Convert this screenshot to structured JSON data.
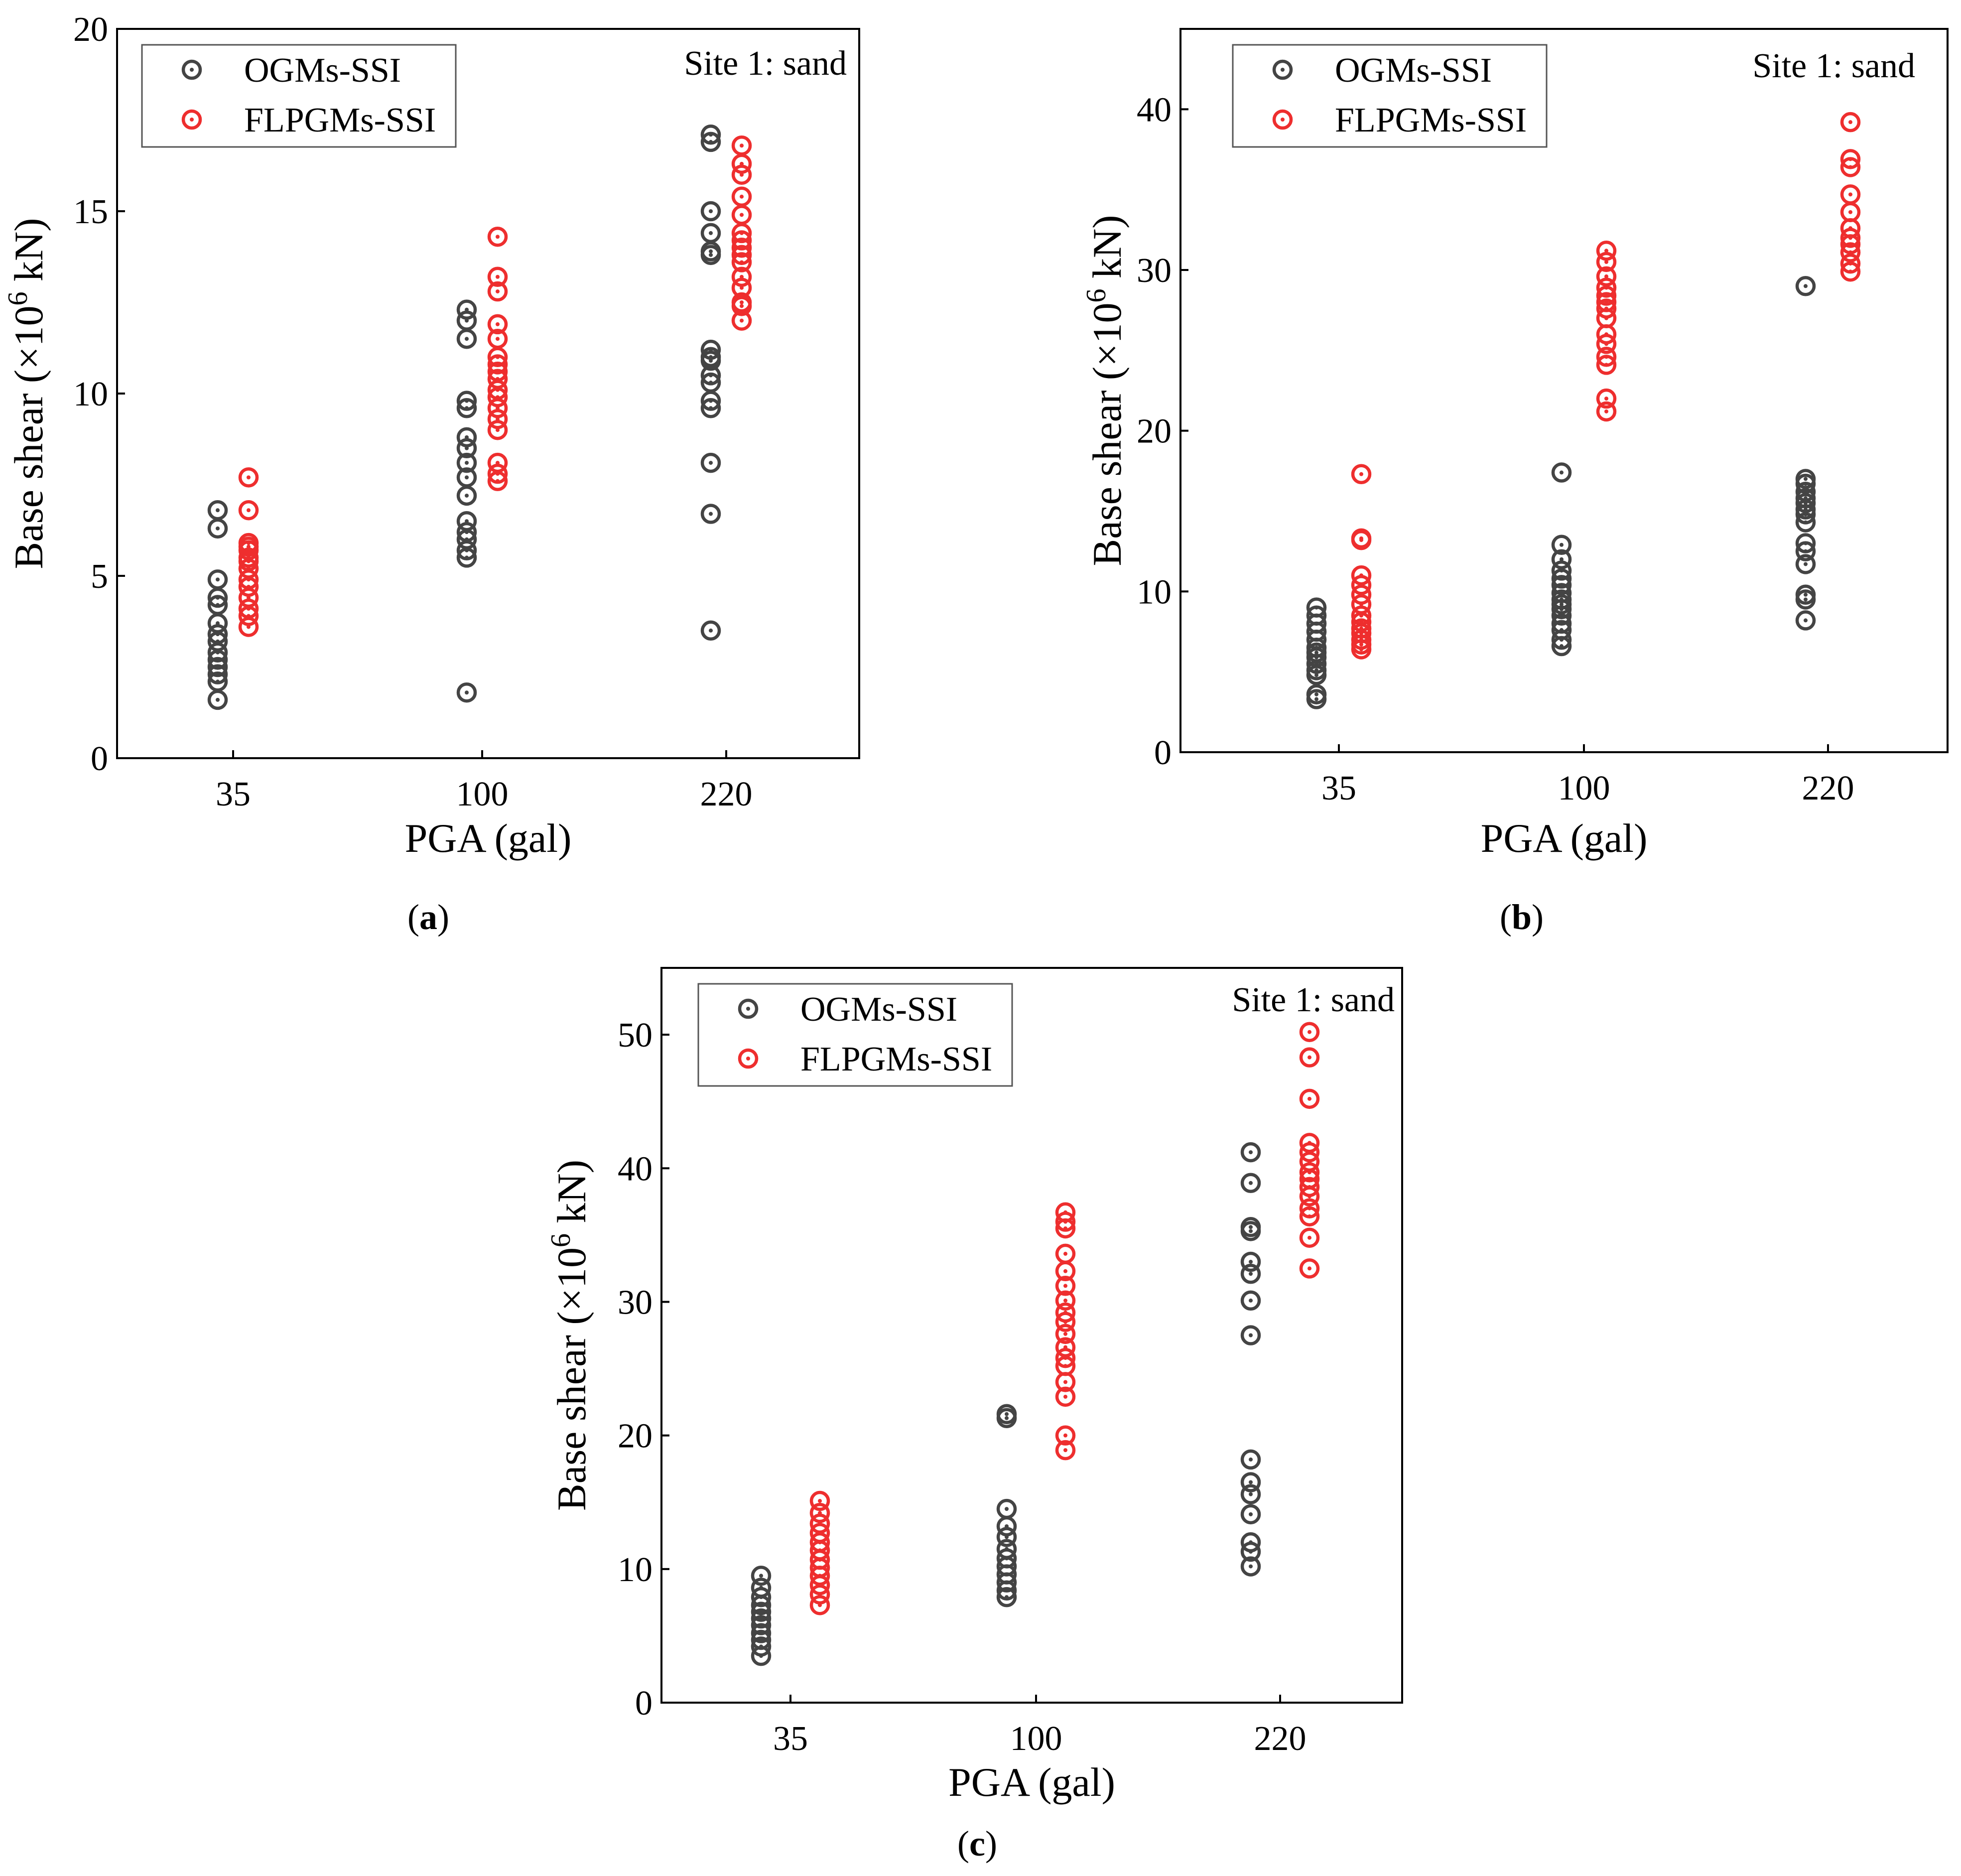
{
  "figure": {
    "panel_labels": [
      "(a)",
      "(b)",
      "(c)"
    ]
  },
  "colors": {
    "ogm": "#444444",
    "flpgm": "#ee2e2e",
    "axis": "#000000"
  },
  "chart_data": [
    {
      "type": "scatter",
      "panel": "a",
      "categories": [
        "35",
        "100",
        "220"
      ],
      "xlabel": "PGA (gal)",
      "ylabel": "Base shear (×10⁶ kN)",
      "ylim": [
        0,
        20
      ],
      "yticks": [
        0,
        5,
        10,
        15,
        20
      ],
      "annotation": "Site 1: sand",
      "legend": {
        "position": "top-left",
        "entries": [
          "OGMs-SSI",
          "FLPGMs-SSI"
        ]
      },
      "series": [
        {
          "name": "OGMs-SSI",
          "color": "#444444",
          "values": [
            [
              6.8,
              6.3,
              4.9,
              4.4,
              4.2,
              3.7,
              3.4,
              3.2,
              2.9,
              2.7,
              2.5,
              2.3,
              2.1,
              1.6
            ],
            [
              12.3,
              12.0,
              11.5,
              9.8,
              9.6,
              8.8,
              8.5,
              8.1,
              7.7,
              7.2,
              6.5,
              6.2,
              6.0,
              5.7,
              5.5,
              1.8
            ],
            [
              17.1,
              16.9,
              15.0,
              14.4,
              13.9,
              13.8,
              11.2,
              11.0,
              10.9,
              10.5,
              10.3,
              9.8,
              9.6,
              8.1,
              6.7,
              3.5
            ]
          ]
        },
        {
          "name": "FLPGMs-SSI",
          "color": "#ee2e2e",
          "values": [
            [
              7.7,
              6.8,
              5.9,
              5.8,
              5.7,
              5.5,
              5.4,
              5.2,
              4.9,
              4.7,
              4.4,
              4.1,
              3.9,
              3.6
            ],
            [
              14.3,
              13.2,
              12.8,
              11.9,
              11.5,
              11.0,
              10.8,
              10.6,
              10.4,
              10.1,
              9.9,
              9.6,
              9.3,
              9.0,
              8.1,
              7.8,
              7.6
            ],
            [
              16.8,
              16.3,
              16.0,
              15.4,
              14.9,
              14.4,
              14.2,
              14.0,
              13.8,
              13.6,
              13.2,
              12.9,
              12.5,
              12.4,
              12.0
            ]
          ]
        }
      ]
    },
    {
      "type": "scatter",
      "panel": "b",
      "categories": [
        "35",
        "100",
        "220"
      ],
      "xlabel": "PGA (gal)",
      "ylabel": "Base shear (×10⁶ kN)",
      "ylim": [
        0,
        45
      ],
      "yticks": [
        0,
        10,
        20,
        30,
        40
      ],
      "annotation": "Site 1: sand",
      "legend": {
        "position": "top-left",
        "entries": [
          "OGMs-SSI",
          "FLPGMs-SSI"
        ]
      },
      "series": [
        {
          "name": "OGMs-SSI",
          "color": "#444444",
          "values": [
            [
              9.0,
              8.5,
              8.0,
              7.5,
              7.0,
              6.5,
              6.2,
              5.9,
              5.5,
              5.1,
              4.8,
              3.6,
              3.3
            ],
            [
              17.4,
              12.9,
              12.0,
              11.3,
              10.8,
              10.4,
              9.9,
              9.5,
              9.2,
              8.9,
              8.5,
              8.0,
              7.6,
              7.0,
              6.6
            ],
            [
              29.0,
              17.0,
              16.7,
              16.2,
              15.8,
              15.5,
              15.1,
              14.8,
              14.3,
              13.0,
              12.5,
              11.7,
              9.8,
              9.5,
              8.2
            ]
          ]
        },
        {
          "name": "FLPGMs-SSI",
          "color": "#ee2e2e",
          "values": [
            [
              17.3,
              13.3,
              13.2,
              11.0,
              10.4,
              9.8,
              9.2,
              8.5,
              8.1,
              7.7,
              7.4,
              7.0,
              6.7,
              6.4
            ],
            [
              31.2,
              30.5,
              29.6,
              28.9,
              28.4,
              28.0,
              27.6,
              27.0,
              26.0,
              25.4,
              24.6,
              24.1,
              22.0,
              21.2
            ],
            [
              39.2,
              36.9,
              36.4,
              34.7,
              33.6,
              32.6,
              32.0,
              31.6,
              31.1,
              30.4,
              29.9
            ]
          ]
        }
      ]
    },
    {
      "type": "scatter",
      "panel": "c",
      "categories": [
        "35",
        "100",
        "220"
      ],
      "xlabel": "PGA (gal)",
      "ylabel": "Base shear (×10⁶ kN)",
      "ylim": [
        0,
        55
      ],
      "yticks": [
        0,
        10,
        20,
        30,
        40,
        50
      ],
      "annotation": "Site 1: sand",
      "legend": {
        "position": "top-left",
        "entries": [
          "OGMs-SSI",
          "FLPGMs-SSI"
        ]
      },
      "series": [
        {
          "name": "OGMs-SSI",
          "color": "#444444",
          "values": [
            [
              9.5,
              8.6,
              7.9,
              7.3,
              6.8,
              6.3,
              5.8,
              5.2,
              4.7,
              4.2,
              3.5
            ],
            [
              21.6,
              21.3,
              14.5,
              13.2,
              12.4,
              11.5,
              10.8,
              10.2,
              9.6,
              9.0,
              8.4,
              7.9
            ],
            [
              41.2,
              38.9,
              35.6,
              35.3,
              33.0,
              32.1,
              30.1,
              27.5,
              18.2,
              16.5,
              15.6,
              14.1,
              12.0,
              11.3,
              10.2
            ]
          ]
        },
        {
          "name": "FLPGMs-SSI",
          "color": "#ee2e2e",
          "values": [
            [
              15.1,
              14.2,
              13.4,
              12.7,
              12.0,
              11.4,
              10.7,
              10.1,
              9.5,
              8.8,
              8.1,
              7.3
            ],
            [
              36.7,
              36.0,
              35.5,
              33.6,
              32.3,
              31.2,
              30.1,
              29.2,
              28.5,
              27.6,
              26.6,
              25.8,
              25.2,
              24.0,
              22.9,
              20.0,
              18.9
            ],
            [
              50.2,
              48.3,
              45.2,
              41.9,
              41.2,
              40.5,
              39.7,
              39.2,
              38.6,
              37.9,
              37.0,
              36.4,
              34.8,
              32.5
            ]
          ]
        }
      ]
    }
  ]
}
